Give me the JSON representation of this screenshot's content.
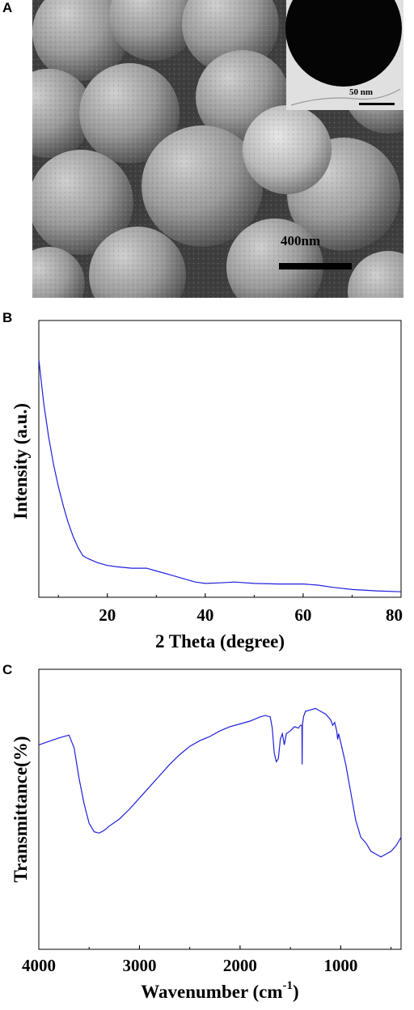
{
  "panels": {
    "a": {
      "letter": "A",
      "scale_bar_label": "400nm",
      "inset_scale_label": "50 nm"
    },
    "b": {
      "letter": "B"
    },
    "c": {
      "letter": "C"
    }
  },
  "colors": {
    "line": "#1f1fdc",
    "axis": "#000000",
    "sem_bg": "#5a5a5a"
  },
  "chart_data": [
    {
      "type": "line",
      "xlabel": "2 Theta (degree)",
      "ylabel": "Intensity (a.u.)",
      "xlim": [
        6,
        80
      ],
      "ylim": [
        0,
        100
      ],
      "xticks": [
        "20",
        "40",
        "60",
        "80"
      ],
      "yticks": [],
      "x": [
        6,
        7,
        8,
        9,
        10,
        11,
        12,
        13,
        14,
        15,
        16,
        18,
        20,
        22,
        25,
        28,
        30,
        33,
        36,
        38,
        40,
        43,
        46,
        50,
        55,
        60,
        63,
        66,
        70,
        75,
        80
      ],
      "values": [
        86,
        70,
        58,
        48,
        40,
        33,
        27,
        22,
        18,
        15,
        14,
        12.5,
        11.5,
        11,
        10.5,
        10.5,
        9.5,
        8,
        6.5,
        5.5,
        5,
        5.2,
        5.5,
        5,
        4.8,
        4.8,
        4.4,
        3.6,
        2.8,
        2.3,
        2
      ]
    },
    {
      "type": "line",
      "xlabel": "Wavenumber (cm",
      "xlabel_superscript": "-1",
      "xlabel_suffix": ")",
      "ylabel": "Transmittance(%)",
      "xlim": [
        4000,
        400
      ],
      "ylim": [
        0,
        100
      ],
      "xticks": [
        "4000",
        "3000",
        "2000",
        "1000"
      ],
      "yticks": [],
      "x": [
        4000,
        3800,
        3700,
        3650,
        3600,
        3550,
        3500,
        3450,
        3400,
        3350,
        3300,
        3200,
        3100,
        3000,
        2900,
        2800,
        2700,
        2600,
        2500,
        2400,
        2300,
        2200,
        2100,
        2000,
        1900,
        1800,
        1750,
        1700,
        1680,
        1660,
        1640,
        1620,
        1600,
        1580,
        1560,
        1540,
        1500,
        1460,
        1420,
        1400,
        1385,
        1383,
        1380,
        1370,
        1350,
        1300,
        1250,
        1200,
        1150,
        1100,
        1080,
        1060,
        1040,
        1030,
        1020,
        1000,
        950,
        900,
        850,
        800,
        750,
        700,
        650,
        600,
        550,
        500,
        450,
        400
      ],
      "values": [
        73,
        75.5,
        76.5,
        72,
        61,
        52,
        45,
        42,
        41.5,
        42.5,
        44,
        46.5,
        50,
        54,
        58,
        62,
        66,
        69.5,
        72.5,
        74.5,
        76,
        78,
        79.5,
        80.5,
        81.5,
        83,
        83.5,
        83,
        79,
        70,
        67,
        68,
        75,
        77,
        73,
        77,
        78,
        79.5,
        79,
        80,
        80,
        66,
        80,
        83,
        85,
        85.5,
        86,
        85,
        84,
        82,
        80,
        81,
        78,
        75,
        77,
        74,
        66,
        56,
        46,
        40,
        38,
        35,
        34,
        33,
        34,
        35,
        37,
        40
      ]
    }
  ]
}
